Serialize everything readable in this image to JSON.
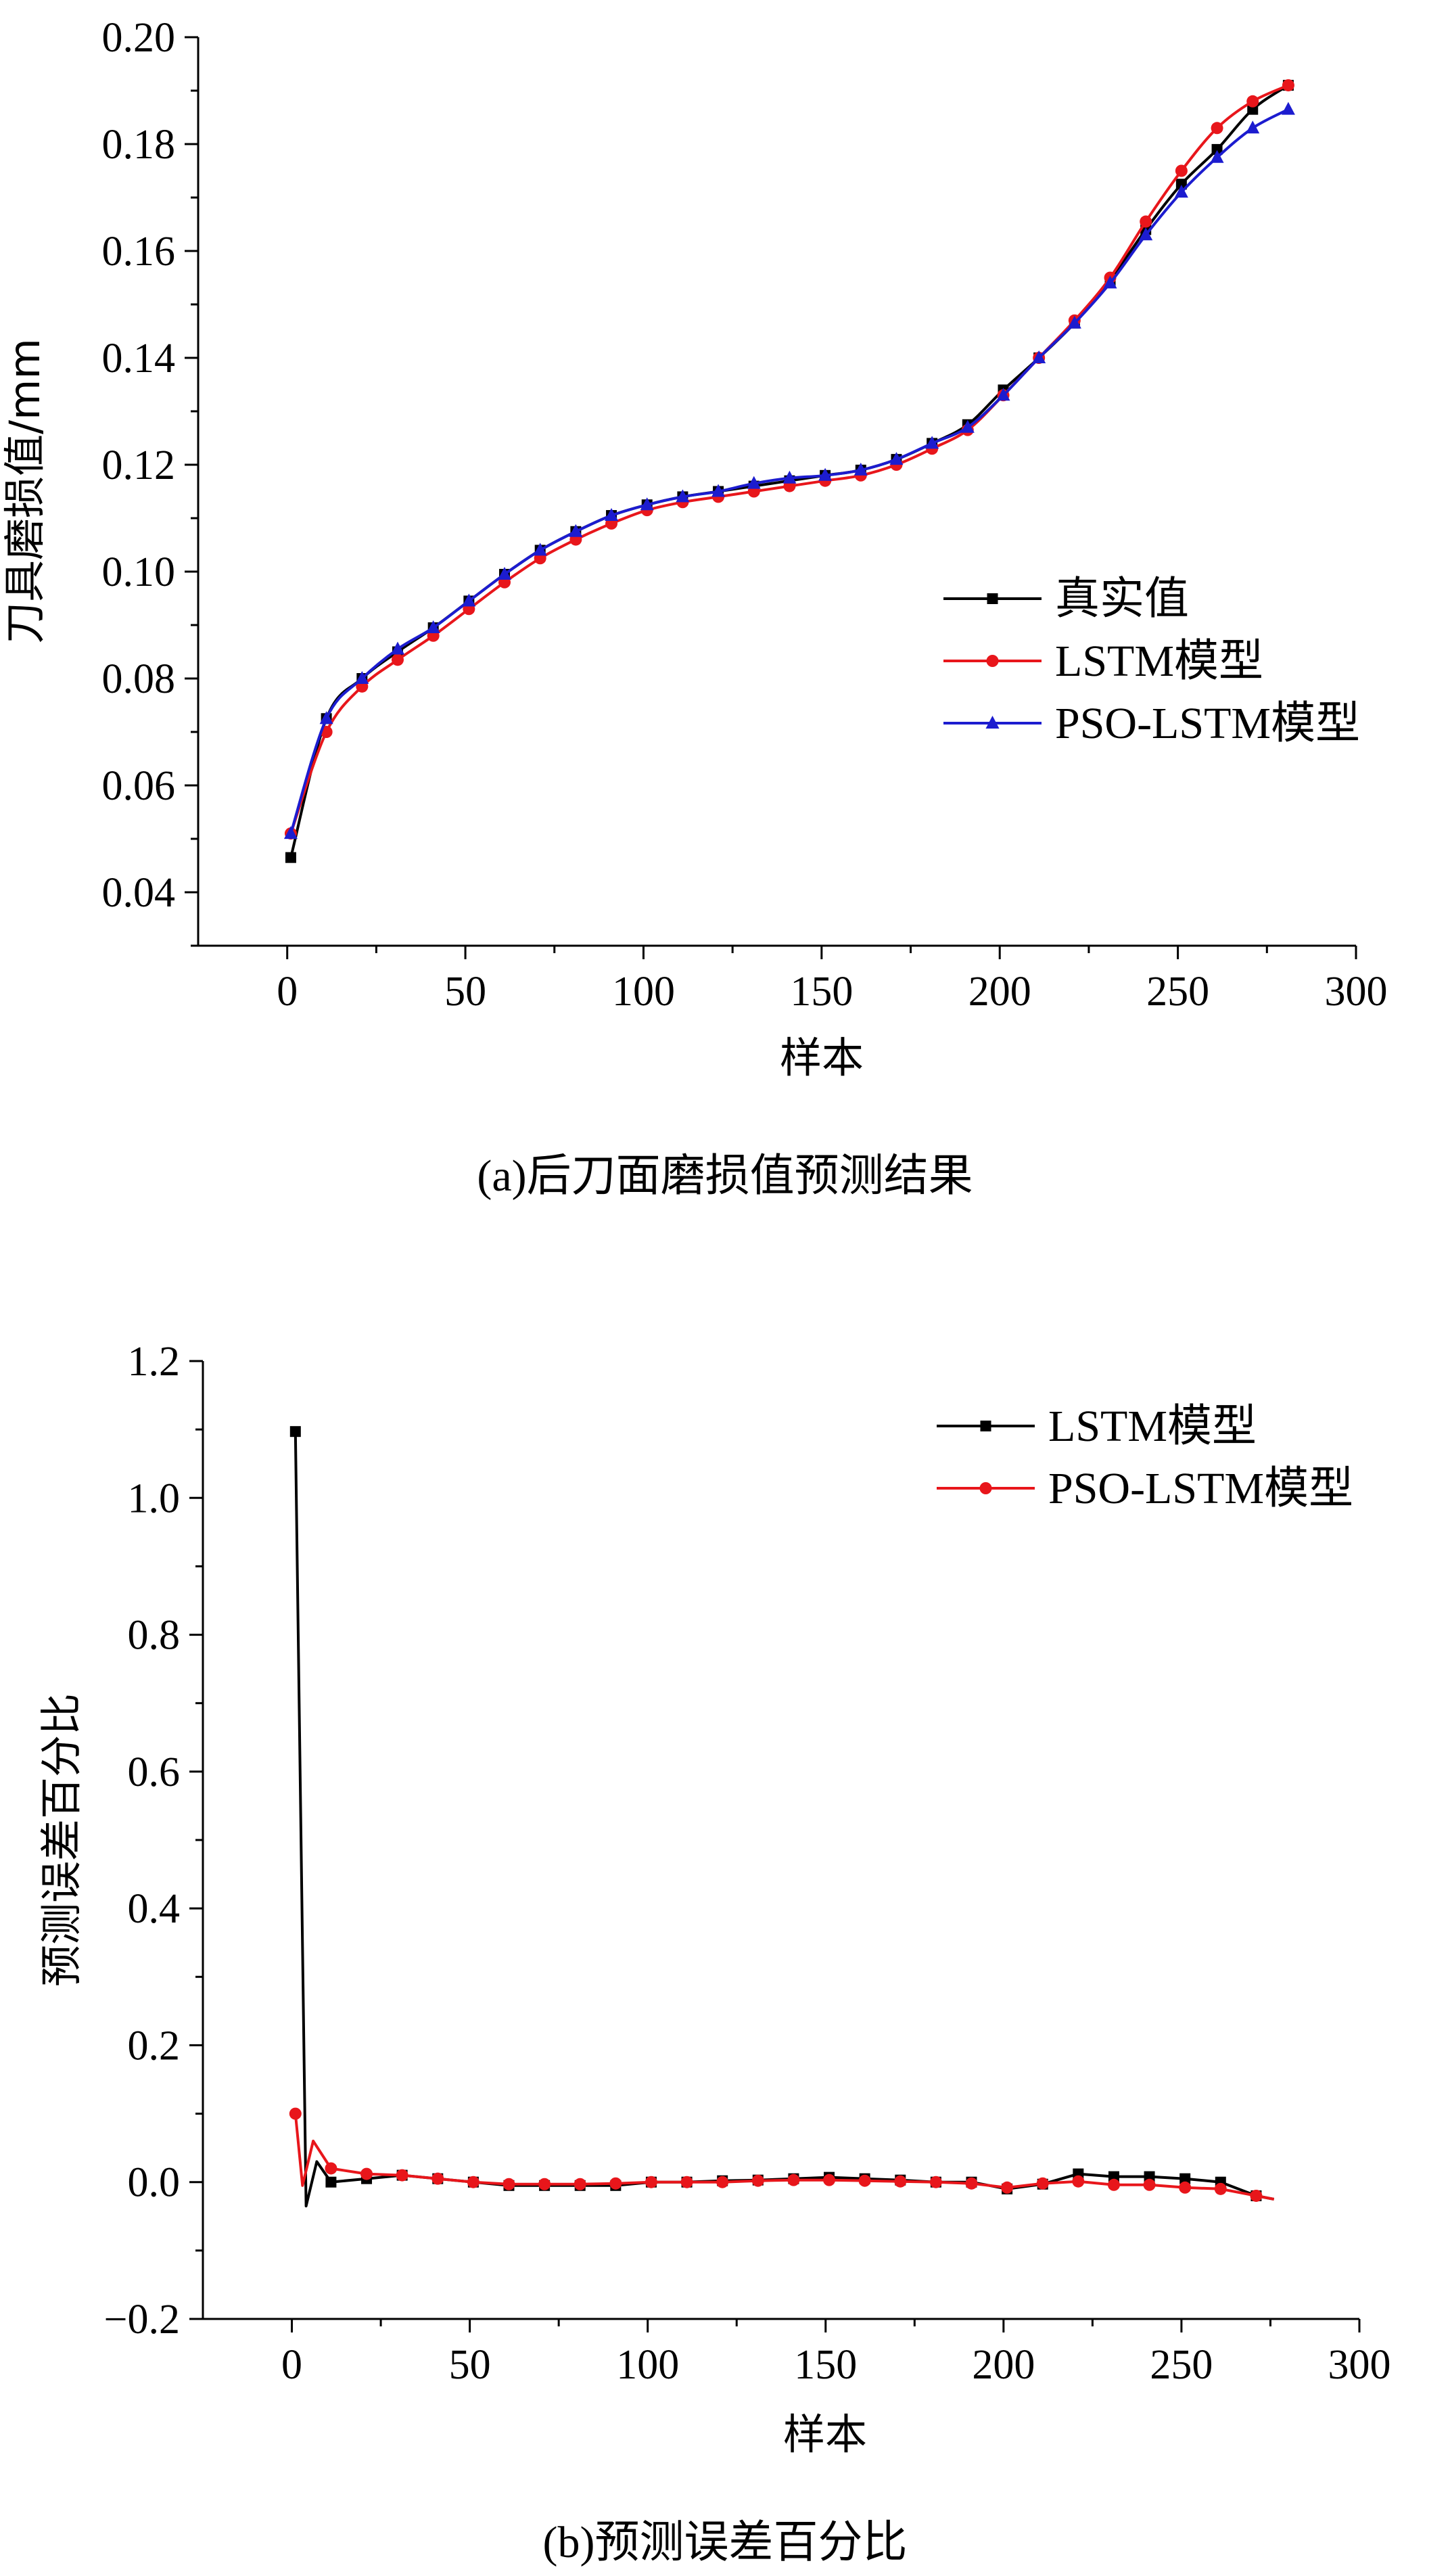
{
  "chart_data": [
    {
      "type": "line",
      "caption": "(a)后刀面磨损值预测结果",
      "xlabel": "样本",
      "ylabel": "刀具磨损值/mm",
      "xlim": [
        -25,
        300
      ],
      "ylim": [
        0.03,
        0.2
      ],
      "xticks": [
        0,
        50,
        100,
        150,
        200,
        250,
        300
      ],
      "yticks": [
        0.04,
        0.06,
        0.08,
        0.1,
        0.12,
        0.14,
        0.16,
        0.18,
        0.2
      ],
      "ytick_labels": [
        "0.04",
        "0.06",
        "0.08",
        "0.10",
        "0.12",
        "0.14",
        "0.16",
        "0.18",
        "0.20"
      ],
      "legend_position": "right-middle",
      "series": [
        {
          "name": "真实值",
          "color": "#000000",
          "marker": "square",
          "x": [
            1,
            11,
            21,
            31,
            41,
            51,
            61,
            71,
            81,
            91,
            101,
            111,
            121,
            131,
            141,
            151,
            161,
            171,
            181,
            191,
            201,
            211,
            221,
            231,
            241,
            251,
            261,
            271,
            281
          ],
          "y": [
            0.0465,
            0.0725,
            0.08,
            0.085,
            0.0895,
            0.0945,
            0.0995,
            0.104,
            0.1075,
            0.1105,
            0.1125,
            0.114,
            0.115,
            0.116,
            0.117,
            0.118,
            0.119,
            0.121,
            0.124,
            0.1275,
            0.134,
            0.14,
            0.1465,
            0.1545,
            0.164,
            0.1725,
            0.179,
            0.1865,
            0.191
          ]
        },
        {
          "name": "LSTM模型",
          "color": "#e8161b",
          "marker": "circle",
          "x": [
            1,
            11,
            21,
            31,
            41,
            51,
            61,
            71,
            81,
            91,
            101,
            111,
            121,
            131,
            141,
            151,
            161,
            171,
            181,
            191,
            201,
            211,
            221,
            231,
            241,
            251,
            261,
            271,
            281
          ],
          "y": [
            0.051,
            0.07,
            0.0785,
            0.0835,
            0.088,
            0.093,
            0.098,
            0.1025,
            0.106,
            0.109,
            0.1115,
            0.113,
            0.114,
            0.115,
            0.116,
            0.117,
            0.118,
            0.12,
            0.123,
            0.1265,
            0.133,
            0.14,
            0.147,
            0.155,
            0.1655,
            0.175,
            0.183,
            0.188,
            0.191
          ]
        },
        {
          "name": "PSO-LSTM模型",
          "color": "#1c1ccf",
          "marker": "triangle",
          "x": [
            1,
            11,
            21,
            31,
            41,
            51,
            61,
            71,
            81,
            91,
            101,
            111,
            121,
            131,
            141,
            151,
            161,
            171,
            181,
            191,
            201,
            211,
            221,
            231,
            241,
            251,
            261,
            271,
            281
          ],
          "y": [
            0.051,
            0.0725,
            0.08,
            0.0855,
            0.0895,
            0.0945,
            0.0995,
            0.104,
            0.1075,
            0.1105,
            0.1125,
            0.114,
            0.115,
            0.1165,
            0.1175,
            0.118,
            0.119,
            0.121,
            0.124,
            0.127,
            0.133,
            0.14,
            0.1465,
            0.154,
            0.163,
            0.171,
            0.1775,
            0.183,
            0.1865
          ]
        }
      ]
    },
    {
      "type": "line",
      "caption": "(b)预测误差百分比",
      "xlabel": "样本",
      "ylabel": "预测误差百分比",
      "xlim": [
        -25,
        300
      ],
      "ylim": [
        -0.2,
        1.2
      ],
      "xticks": [
        0,
        50,
        100,
        150,
        200,
        250,
        300
      ],
      "yticks": [
        -0.2,
        0.0,
        0.2,
        0.4,
        0.6,
        0.8,
        1.0,
        1.2
      ],
      "ytick_labels": [
        "−0.2",
        "0.0",
        "0.2",
        "0.4",
        "0.6",
        "0.8",
        "1.0",
        "1.2"
      ],
      "legend_position": "top-right",
      "series": [
        {
          "name": "LSTM模型",
          "color": "#000000",
          "marker": "square",
          "x": [
            1,
            4,
            7,
            11,
            21,
            31,
            41,
            51,
            61,
            71,
            81,
            91,
            101,
            111,
            121,
            131,
            141,
            151,
            161,
            171,
            181,
            191,
            201,
            211,
            221,
            231,
            241,
            251,
            261,
            271,
            276
          ],
          "y": [
            1.097,
            -0.035,
            0.03,
            0.0,
            0.005,
            0.01,
            0.005,
            0.0,
            -0.005,
            -0.005,
            -0.005,
            -0.005,
            0.0,
            0.0,
            0.002,
            0.003,
            0.005,
            0.007,
            0.005,
            0.003,
            0.0,
            0.0,
            -0.01,
            -0.003,
            0.012,
            0.008,
            0.008,
            0.005,
            0.0,
            -0.02,
            -0.025
          ]
        },
        {
          "name": "PSO-LSTM模型",
          "color": "#e8161b",
          "marker": "circle",
          "x": [
            1,
            3,
            6,
            11,
            21,
            31,
            41,
            51,
            61,
            71,
            81,
            91,
            101,
            111,
            121,
            131,
            141,
            151,
            161,
            171,
            181,
            191,
            201,
            211,
            221,
            231,
            241,
            251,
            261,
            271,
            276
          ],
          "y": [
            0.1,
            -0.005,
            0.06,
            0.02,
            0.012,
            0.01,
            0.005,
            0.0,
            -0.003,
            -0.003,
            -0.003,
            -0.002,
            0.0,
            0.0,
            0.0,
            0.002,
            0.003,
            0.003,
            0.002,
            0.001,
            0.0,
            -0.002,
            -0.008,
            -0.002,
            0.001,
            -0.004,
            -0.004,
            -0.008,
            -0.01,
            -0.02,
            -0.025
          ]
        }
      ]
    }
  ]
}
